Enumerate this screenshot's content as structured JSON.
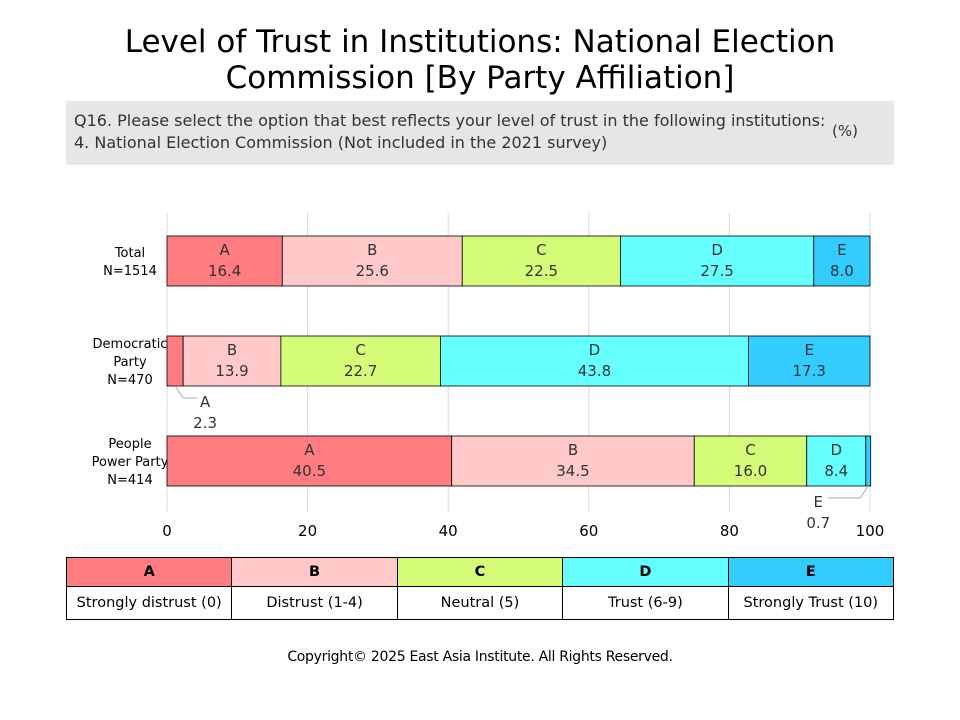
{
  "title_line1": "Level of Trust in Institutions: National Election",
  "title_line2": "Commission [By Party Affiliation]",
  "question_line1": "Q16. Please select the option that best reflects your level of trust in the following institutions:",
  "question_line2": "4. National Election Commission (Not included in the 2021 survey)",
  "unit": "(%)",
  "colors": {
    "A": "#ff7c80",
    "B": "#ffc9c9",
    "C": "#d4fc79",
    "D": "#66ffff",
    "E": "#33ccff"
  },
  "chart_data": {
    "type": "bar",
    "orientation": "horizontal",
    "stacked": true,
    "categories": [
      {
        "label_lines": [
          "Total",
          "N=1514"
        ]
      },
      {
        "label_lines": [
          "Democratic",
          "Party",
          "N=470"
        ]
      },
      {
        "label_lines": [
          "People",
          "Power Party",
          "N=414"
        ]
      }
    ],
    "series": [
      {
        "name": "A",
        "values": [
          16.4,
          2.3,
          40.5
        ]
      },
      {
        "name": "B",
        "values": [
          25.6,
          13.9,
          34.5
        ]
      },
      {
        "name": "C",
        "values": [
          22.5,
          22.7,
          16.0
        ]
      },
      {
        "name": "D",
        "values": [
          27.5,
          43.8,
          8.4
        ]
      },
      {
        "name": "E",
        "values": [
          8.0,
          17.3,
          0.7
        ]
      }
    ],
    "xlim": [
      0,
      100
    ],
    "xticks": [
      0,
      20,
      40,
      60,
      80,
      100
    ],
    "grid": true
  },
  "legend": {
    "codes": [
      "A",
      "B",
      "C",
      "D",
      "E"
    ],
    "descriptions": [
      "Strongly distrust (0)",
      "Distrust (1-4)",
      "Neutral (5)",
      "Trust (6-9)",
      "Strongly Trust (10)"
    ]
  },
  "copyright": "Copyright© 2025 East Asia Institute. All Rights Reserved."
}
